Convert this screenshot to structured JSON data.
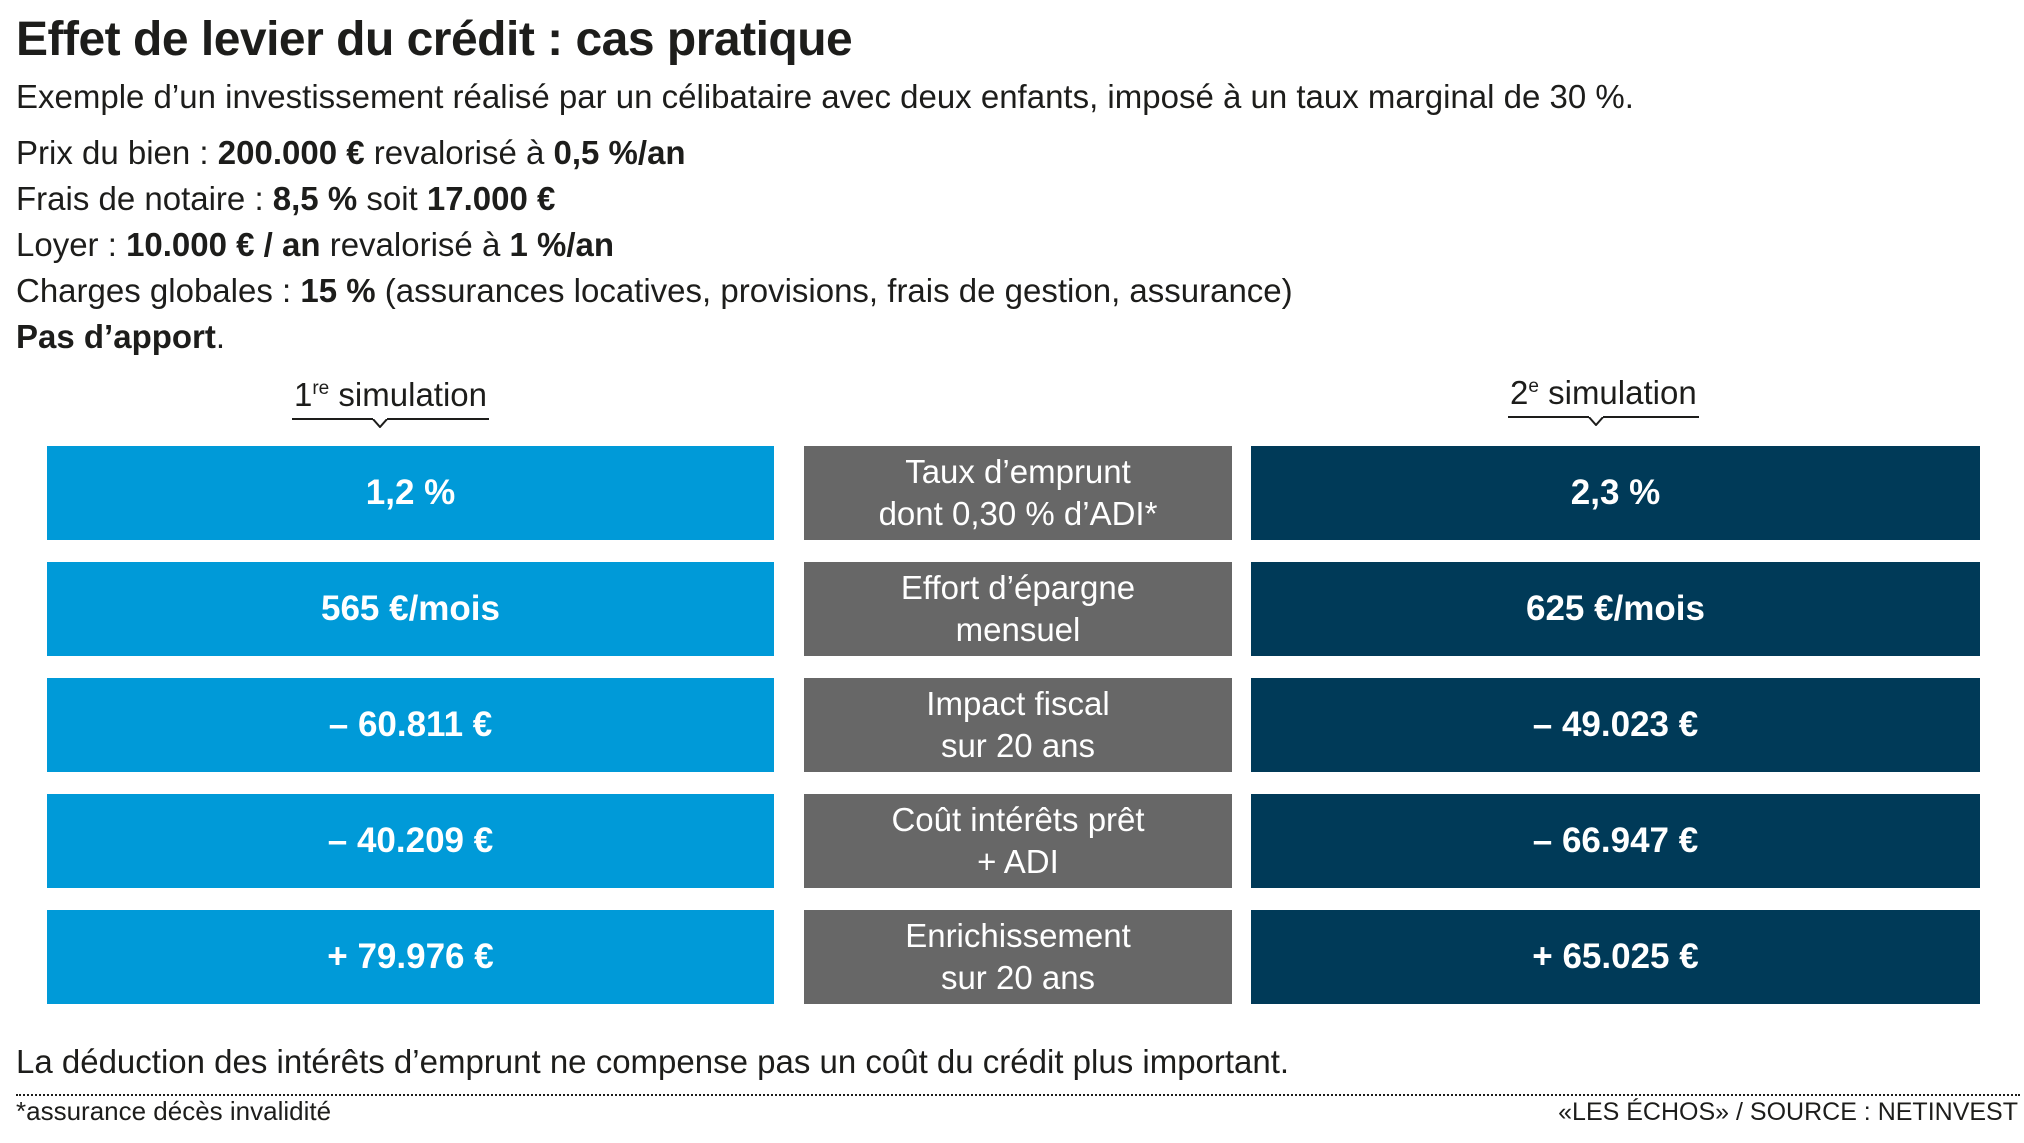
{
  "title": "Effet de levier du crédit : cas pratique",
  "subtitle": "Exemple d’un investissement réalisé par un célibataire avec deux enfants, imposé à un taux marginal de 30 %.",
  "facts": {
    "prix": {
      "label": "Prix du bien : ",
      "value": "200.000 €",
      "mid": " revalorisé à ",
      "value2": "0,5 %/an"
    },
    "notaire": {
      "label": "Frais de notaire : ",
      "value": "8,5 %",
      "mid": " soit ",
      "value2": "17.000 €"
    },
    "loyer": {
      "label": "Loyer : ",
      "value": "10.000 € / an",
      "mid": " revalorisé à ",
      "value2": "1 %/an"
    },
    "charges": {
      "label": "Charges globales : ",
      "value": "15 %",
      "rest": " (assurances locatives, provisions, frais de gestion, assurance)"
    },
    "apport": {
      "value": "Pas d’apport",
      "rest": "."
    }
  },
  "simulations": {
    "first": {
      "num": "1",
      "sup": "re",
      "label": " simulation"
    },
    "second": {
      "num": "2",
      "sup": "e",
      "label": " simulation"
    }
  },
  "rows": [
    {
      "sim1": "1,2 %",
      "label1": "Taux d’emprunt",
      "label2": "dont 0,30 % d’ADI*",
      "sim2": "2,3 %"
    },
    {
      "sim1": "565 €/mois",
      "label1": "Effort d’épargne",
      "label2": "mensuel",
      "sim2": "625 €/mois"
    },
    {
      "sim1": "– 60.811 €",
      "label1": "Impact fiscal",
      "label2": "sur 20 ans",
      "sim2": "– 49.023 €"
    },
    {
      "sim1": "– 40.209 €",
      "label1": "Coût intérêts prêt",
      "label2": "+ ADI",
      "sim2": "– 66.947 €"
    },
    {
      "sim1": "+ 79.976 €",
      "label1": "Enrichissement",
      "label2": "sur 20 ans",
      "sim2": "+ 65.025 €"
    }
  ],
  "conclusion": "La déduction des intérêts d’emprunt ne compense pas un coût du crédit plus important.",
  "footnote": "*assurance décès invalidité",
  "source": "«LES ÉCHOS» / SOURCE : NETINVEST",
  "colors": {
    "sim1": "#009ad8",
    "labels": "#676767",
    "sim2": "#003a58"
  }
}
